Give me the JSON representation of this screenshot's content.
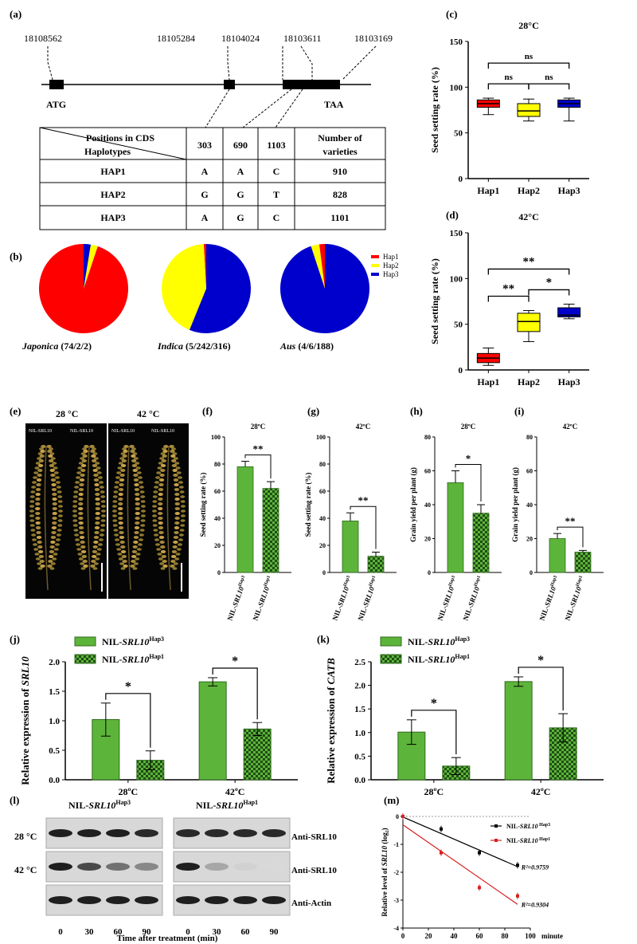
{
  "panels": {
    "a": "(a)",
    "b": "(b)",
    "c": "(c)",
    "d": "(d)",
    "e": "(e)",
    "f": "(f)",
    "g": "(g)",
    "h": "(h)",
    "i": "(i)",
    "j": "(j)",
    "k": "(k)",
    "l": "(l)",
    "m": "(m)"
  },
  "gene": {
    "positions": [
      "18108562",
      "18105284",
      "18104024",
      "18103611",
      "18103169"
    ],
    "start": "ATG",
    "stop": "TAA"
  },
  "hap_table": {
    "corner_top": "Positions in CDS",
    "corner_bottom": "Haplotypes",
    "columns": [
      "303",
      "690",
      "1103"
    ],
    "count_header_1": "Number of",
    "count_header_2": "varieties",
    "rows": [
      {
        "name": "HAP1",
        "alleles": [
          "A",
          "A",
          "C"
        ],
        "count": "910"
      },
      {
        "name": "HAP2",
        "alleles": [
          "G",
          "G",
          "T"
        ],
        "count": "828"
      },
      {
        "name": "HAP3",
        "alleles": [
          "A",
          "G",
          "C"
        ],
        "count": "1101"
      }
    ]
  },
  "pies": {
    "colors": {
      "hap1": "#ff0000",
      "hap2": "#ffff00",
      "hap3": "#0000cc"
    },
    "legend": [
      "Hap1",
      "Hap2",
      "Hap3"
    ],
    "items": [
      {
        "name": "Japonica",
        "counts_label": "(74/2/2)",
        "values": [
          74,
          2,
          2
        ]
      },
      {
        "name": "Indica",
        "counts_label": "(5/242/316)",
        "values": [
          5,
          242,
          316
        ]
      },
      {
        "name": "Aus",
        "counts_label": "(4/6/188)",
        "values": [
          4,
          6,
          188
        ]
      }
    ]
  },
  "photo": {
    "left_label": "28 °C",
    "right_label": "42 °C",
    "nil_label": "NIL-SRL10"
  },
  "blot": {
    "left_header_prefix": "NIL-",
    "left_header_gene": "SRL10",
    "left_header_sup": "Hap3",
    "right_header_prefix": "NIL-",
    "right_header_gene": "SRL10",
    "right_header_sup": "Hap1",
    "rows": [
      "28 °C",
      "42 °C",
      ""
    ],
    "antibodies": [
      "Anti-SRL10",
      "Anti-SRL10",
      "Anti-Actin"
    ],
    "times": [
      "0",
      "30",
      "60",
      "90"
    ],
    "xlabel": "Time after treatment (min)"
  },
  "chart_data": [
    {
      "id": "c",
      "type": "box",
      "title": "28°C",
      "ylabel": "Seed setting rate (%)",
      "categories": [
        "Hap1",
        "Hap2",
        "Hap3"
      ],
      "ylim": [
        0,
        150
      ],
      "yticks": [
        0,
        50,
        100,
        150
      ],
      "colors": [
        "#ff0000",
        "#ffff00",
        "#0000cc"
      ],
      "boxes": [
        {
          "min": 70,
          "q1": 78,
          "median": 82,
          "q3": 86,
          "max": 88
        },
        {
          "min": 63,
          "q1": 68,
          "median": 74,
          "q3": 82,
          "max": 87
        },
        {
          "min": 63,
          "q1": 78,
          "median": 82,
          "q3": 86,
          "max": 88
        }
      ],
      "sig": [
        {
          "from": 0,
          "to": 2,
          "label": "ns"
        },
        {
          "from": 0,
          "to": 1,
          "label": "ns"
        },
        {
          "from": 1,
          "to": 2,
          "label": "ns"
        }
      ]
    },
    {
      "id": "d",
      "type": "box",
      "title": "42°C",
      "ylabel": "Seed setting rate (%)",
      "categories": [
        "Hap1",
        "Hap2",
        "Hap3"
      ],
      "ylim": [
        0,
        150
      ],
      "yticks": [
        0,
        50,
        100,
        150
      ],
      "colors": [
        "#ff0000",
        "#ffff00",
        "#0000cc"
      ],
      "boxes": [
        {
          "min": 5,
          "q1": 8,
          "median": 13,
          "q3": 18,
          "max": 24
        },
        {
          "min": 31,
          "q1": 42,
          "median": 53,
          "q3": 62,
          "max": 65
        },
        {
          "min": 56,
          "q1": 58,
          "median": 60,
          "q3": 68,
          "max": 72
        }
      ],
      "sig": [
        {
          "from": 0,
          "to": 2,
          "label": "**"
        },
        {
          "from": 0,
          "to": 1,
          "label": "**"
        },
        {
          "from": 1,
          "to": 2,
          "label": "*"
        }
      ]
    },
    {
      "id": "f",
      "type": "bar",
      "title": "28ºC",
      "ylabel": "Seed setting rate (%)",
      "ylim": [
        0,
        100
      ],
      "yticks": [
        0,
        20,
        40,
        60,
        80,
        100
      ],
      "categories": [
        "Hap3",
        "Hap1"
      ],
      "values": [
        78,
        62
      ],
      "errors": [
        4,
        5
      ],
      "sig": "**"
    },
    {
      "id": "g",
      "type": "bar",
      "title": "42ºC",
      "ylabel": "Seed setting rate (%)",
      "ylim": [
        0,
        100
      ],
      "yticks": [
        0,
        20,
        40,
        60,
        80,
        100
      ],
      "categories": [
        "Hap3",
        "Hap1"
      ],
      "values": [
        38,
        12
      ],
      "errors": [
        6,
        3
      ],
      "sig": "**"
    },
    {
      "id": "h",
      "type": "bar",
      "title": "28ºC",
      "ylabel": "Grain yield per plant (g)",
      "ylim": [
        0,
        80
      ],
      "yticks": [
        0,
        20,
        40,
        60,
        80
      ],
      "categories": [
        "Hap3",
        "Hap1"
      ],
      "values": [
        53,
        35
      ],
      "errors": [
        7,
        5
      ],
      "sig": "*"
    },
    {
      "id": "i",
      "type": "bar",
      "title": "42ºC",
      "ylabel": "Grain yield per plant (g)",
      "ylim": [
        0,
        80
      ],
      "yticks": [
        0,
        20,
        40,
        60,
        80
      ],
      "categories": [
        "Hap3",
        "Hap1"
      ],
      "values": [
        20,
        12
      ],
      "errors": [
        3,
        1
      ],
      "sig": "**"
    },
    {
      "id": "j",
      "type": "grouped-bar",
      "ylabel_prefix": "Relative expression of ",
      "ylabel_gene": "SRL10",
      "ylim": [
        0,
        2.0
      ],
      "yticks": [
        0.0,
        0.5,
        1.0,
        1.5,
        2.0
      ],
      "categories": [
        "28ºC",
        "42ºC"
      ],
      "series": [
        {
          "name": "NIL-SRL10 Hap3",
          "gene": "SRL10",
          "sup": "Hap3",
          "values": [
            1.02,
            1.66
          ],
          "errors": [
            0.28,
            0.07
          ]
        },
        {
          "name": "NIL-SRL10 Hap1",
          "gene": "SRL10",
          "sup": "Hap1",
          "values": [
            0.33,
            0.86
          ],
          "errors": [
            0.16,
            0.11
          ]
        }
      ],
      "sig": [
        "*",
        "*"
      ]
    },
    {
      "id": "k",
      "type": "grouped-bar",
      "ylabel_prefix": "Relative expression of ",
      "ylabel_gene": "CATB",
      "ylim": [
        0,
        2.5
      ],
      "yticks": [
        0.0,
        0.5,
        1.0,
        1.5,
        2.0,
        2.5
      ],
      "categories": [
        "28ºC",
        "42ºC"
      ],
      "series": [
        {
          "name": "NIL-SRL10 Hap3",
          "gene": "SRL10",
          "sup": "Hap3",
          "values": [
            1.01,
            2.08
          ],
          "errors": [
            0.26,
            0.1
          ]
        },
        {
          "name": "NIL-SRL10 Hap1",
          "gene": "SRL10",
          "sup": "Hap1",
          "values": [
            0.29,
            1.1
          ],
          "errors": [
            0.18,
            0.3
          ]
        }
      ],
      "sig": [
        "*",
        "*"
      ]
    },
    {
      "id": "m",
      "type": "scatter-line",
      "ylabel_prefix": "Relative level of ",
      "ylabel_gene": "SRL10",
      "ylabel_suffix": " (log₂)",
      "xlabel": "minute",
      "xlim": [
        0,
        100
      ],
      "ylim": [
        -4,
        0
      ],
      "xticks": [
        0,
        20,
        40,
        60,
        80,
        100
      ],
      "yticks": [
        0,
        -1,
        -2,
        -3,
        -4
      ],
      "series": [
        {
          "name": "NIL-SRL10 Hap3",
          "gene": "SRL10",
          "sup": "Hap3",
          "color": "#000000",
          "x": [
            0,
            30,
            60,
            90
          ],
          "y": [
            0,
            -0.45,
            -1.3,
            -1.75
          ],
          "fit": [
            [
              0,
              -0.02
            ],
            [
              90,
              -1.8
            ]
          ],
          "r2": "R²=0.9759"
        },
        {
          "name": "NIL-SRL10 Hap1",
          "gene": "SRL10",
          "sup": "Hap1",
          "color": "#d62020",
          "x": [
            0,
            30,
            60,
            90
          ],
          "y": [
            0,
            -1.3,
            -2.55,
            -2.85
          ],
          "fit": [
            [
              0,
              -0.3
            ],
            [
              90,
              -3.15
            ]
          ],
          "r2": "R²=0.9304"
        }
      ]
    }
  ]
}
